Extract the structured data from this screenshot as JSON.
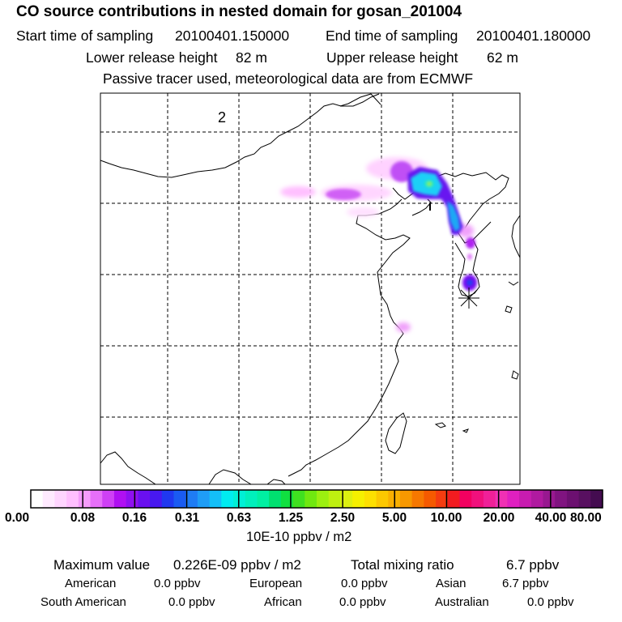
{
  "header": {
    "title": "CO  source contributions in nested domain for gosan_201004",
    "start_label": "Start time of sampling",
    "start_value": "20100401.150000",
    "end_label": "End time of sampling",
    "end_value": "20100401.180000",
    "lower_label": "Lower release height",
    "lower_value": "82 m",
    "upper_label": "Upper release height",
    "upper_value": "62 m",
    "note": "Passive tracer used, meteorological data are from ECMWF"
  },
  "map": {
    "label_2": "2",
    "label_1": "1",
    "receptor_marker": "asterisk-receptor-icon"
  },
  "colorbar": {
    "tick_labels": [
      "0.00",
      "0.08",
      "0.16",
      "0.31",
      "0.63",
      "1.25",
      "2.50",
      "5.00",
      "10.00",
      "20.00",
      "40.00",
      "80.00"
    ],
    "colors": [
      "#ffffff",
      "#ffeaff",
      "#ffd5ff",
      "#ffbfff",
      "#f59cfb",
      "#e66ff8",
      "#cf40f5",
      "#b010f2",
      "#8f10f0",
      "#6a10f0",
      "#4818f0",
      "#2038f0",
      "#1a5bf2",
      "#1f7cf4",
      "#1f9df6",
      "#14bff8",
      "#00ecf0",
      "#00f0d6",
      "#00f0bc",
      "#00f0a2",
      "#00e070",
      "#10e040",
      "#40e020",
      "#70e810",
      "#9cef10",
      "#bef010",
      "#def010",
      "#f5f000",
      "#fde000",
      "#fcc800",
      "#f9b000",
      "#f79800",
      "#f67800",
      "#f55a00",
      "#f43c10",
      "#f21c20",
      "#f20060",
      "#f0107c",
      "#f02098",
      "#f030b4",
      "#e020c0",
      "#c81cb0",
      "#b01aa0",
      "#981890",
      "#801480",
      "#6c1070",
      "#581060",
      "#440c50"
    ],
    "units": "10E-10 ppbv / m2"
  },
  "stats": {
    "max_label": "Maximum value",
    "max_value": "0.226E-09 ppbv / m2",
    "total_label": "Total mixing ratio",
    "total_value": "6.7 ppbv",
    "regions": [
      {
        "name": "American",
        "value": "0.0 ppbv"
      },
      {
        "name": "European",
        "value": "0.0 ppbv"
      },
      {
        "name": "Asian",
        "value": "6.7 ppbv"
      },
      {
        "name": "South American",
        "value": "0.0 ppbv"
      },
      {
        "name": "African",
        "value": "0.0 ppbv"
      },
      {
        "name": "Australian",
        "value": "0.0 ppbv"
      }
    ]
  }
}
